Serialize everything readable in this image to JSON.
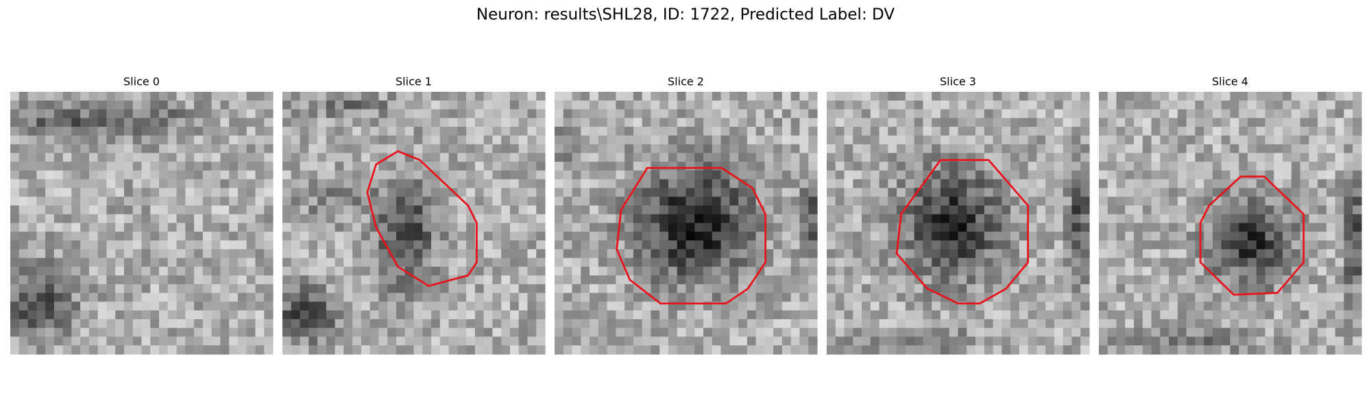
{
  "title": "Neuron: results\\SHL28, ID: 1722, Predicted Label: DV",
  "panels": [
    {
      "title": "Slice 0"
    },
    {
      "title": "Slice 1"
    },
    {
      "title": "Slice 2"
    },
    {
      "title": "Slice 3"
    },
    {
      "title": "Slice 4"
    }
  ]
}
